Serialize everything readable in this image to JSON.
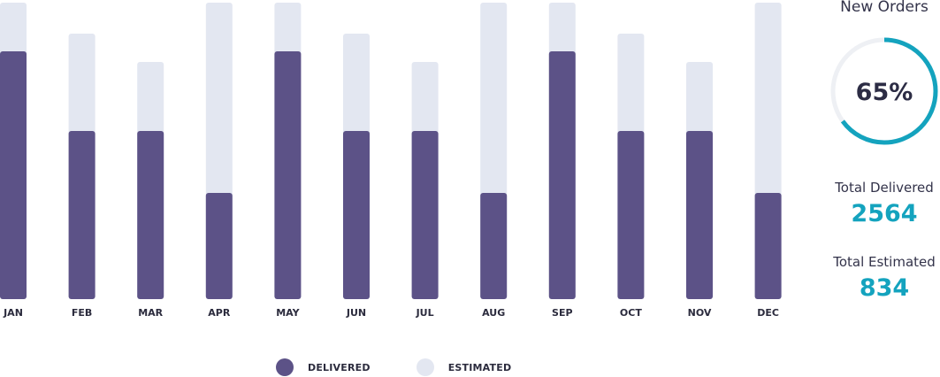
{
  "chart_data": {
    "type": "bar",
    "categories": [
      "JAN",
      "FEB",
      "MAR",
      "APR",
      "MAY",
      "JUN",
      "JUL",
      "AUG",
      "SEP",
      "OCT",
      "NOV",
      "DEC"
    ],
    "series": [
      {
        "name": "DELIVERED",
        "values": [
          280,
          190,
          190,
          120,
          280,
          190,
          190,
          120,
          280,
          190,
          190,
          120
        ]
      },
      {
        "name": "ESTIMATED",
        "values": [
          335,
          300,
          268,
          335,
          335,
          300,
          268,
          335,
          335,
          300,
          268,
          335
        ]
      }
    ],
    "ylim": [
      0,
      335
    ],
    "colors": {
      "delivered": "#5c5287",
      "estimated": "#e3e7f1"
    },
    "legend_position": "bottom"
  },
  "legend": {
    "delivered": "DELIVERED",
    "estimated": "ESTIMATED"
  },
  "side_panel": {
    "title": "New Orders",
    "progress": {
      "value": 65,
      "label": "65%",
      "color": "#14a3be",
      "track_color": "#eef0f4"
    },
    "total_delivered_label": "Total Delivered",
    "total_delivered_value": "2564",
    "total_estimated_label": "Total Estimated",
    "total_estimated_value": "834",
    "accent_color": "#14a3be"
  }
}
